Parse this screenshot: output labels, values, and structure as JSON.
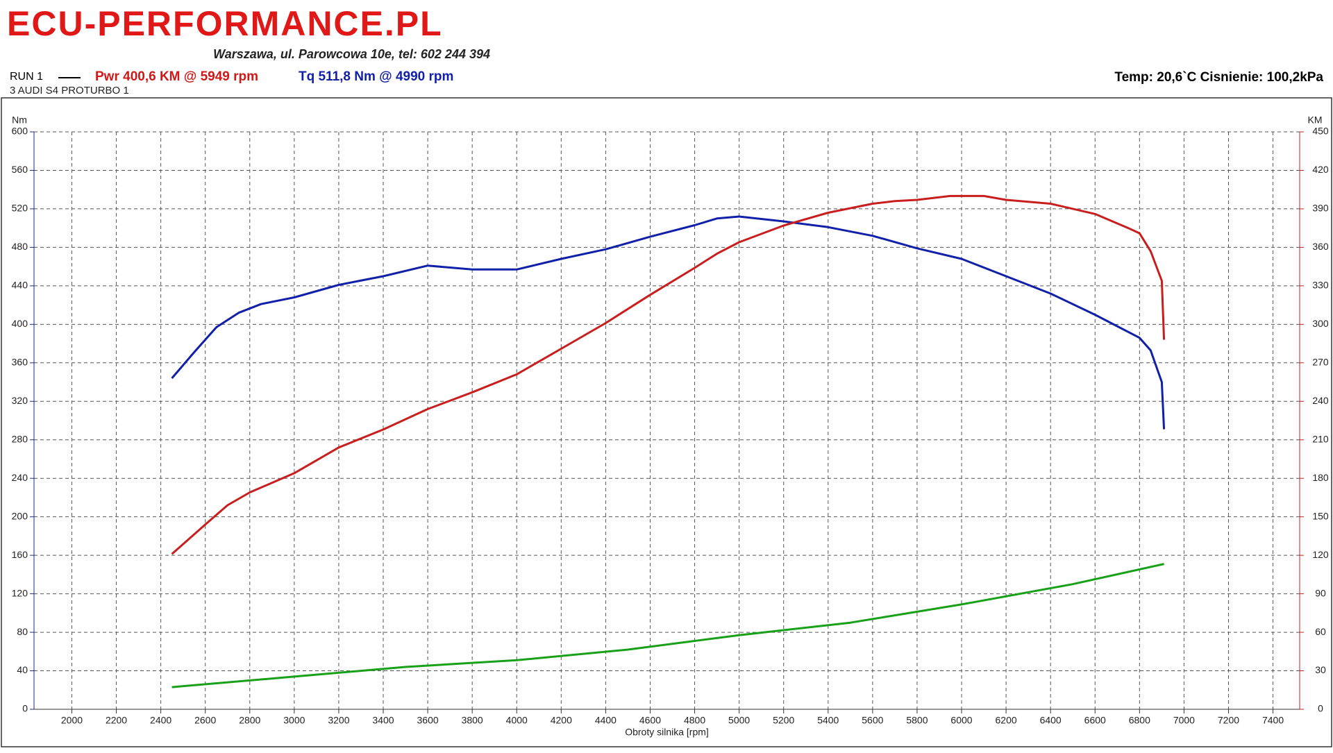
{
  "header": {
    "logo": "ECU-PERFORMANCE.PL",
    "address": "Warszawa, ul. Parowcowa 10e, tel: 602 244 394",
    "run": "RUN 1",
    "power_info": "Pwr  400,6 KM @ 5949 rpm",
    "torque_info": "Tq 511,8 Nm @ 4990 rpm",
    "vehicle": "3 AUDI S4 PROTURBO 1",
    "conditions": "Temp: 20,6`C   Cisnienie: 100,2kPa"
  },
  "chart_data": {
    "type": "line",
    "xlabel": "Obroty silnika [rpm]",
    "ylabel": "Nm",
    "y2label": "KM",
    "xlim": [
      1830,
      7520
    ],
    "xticks": [
      2000,
      2200,
      2400,
      2600,
      2800,
      3000,
      3200,
      3400,
      3600,
      3800,
      4000,
      4200,
      4400,
      4600,
      4800,
      5000,
      5200,
      5400,
      5600,
      5800,
      6000,
      6200,
      6400,
      6600,
      6800,
      7000,
      7200,
      7400
    ],
    "ylim": [
      0,
      600
    ],
    "yticks": [
      0,
      40,
      80,
      120,
      160,
      200,
      240,
      280,
      320,
      360,
      400,
      440,
      480,
      520,
      560,
      600
    ],
    "y2lim": [
      0,
      450
    ],
    "y2ticks": [
      0,
      30,
      60,
      90,
      120,
      150,
      180,
      210,
      240,
      270,
      300,
      330,
      360,
      390,
      420,
      450
    ],
    "grid": true,
    "ycolor": "#1a2a8a",
    "y2color": "#c81e1e",
    "series": [
      {
        "color": "#1020a8",
        "axis": "y",
        "x": [
          2450,
          2550,
          2650,
          2750,
          2850,
          3000,
          3200,
          3400,
          3600,
          3800,
          4000,
          4200,
          4400,
          4600,
          4800,
          4900,
          5000,
          5200,
          5400,
          5600,
          5800,
          6000,
          6200,
          6400,
          6600,
          6800,
          6850,
          6900,
          6910
        ],
        "values": [
          344,
          371,
          397,
          412,
          421,
          428,
          441,
          450,
          461,
          457,
          457,
          468,
          478,
          491,
          503,
          510,
          512,
          507,
          501,
          492,
          479,
          468,
          450,
          432,
          410,
          386,
          373,
          340,
          291
        ]
      },
      {
        "color": "#c81e1e",
        "axis": "y2",
        "x": [
          2450,
          2600,
          2700,
          2800,
          3000,
          3200,
          3400,
          3600,
          3800,
          4000,
          4200,
          4400,
          4600,
          4800,
          4900,
          5000,
          5200,
          5400,
          5600,
          5700,
          5800,
          5949,
          6100,
          6200,
          6400,
          6600,
          6750,
          6800,
          6850,
          6900,
          6910
        ],
        "values": [
          121,
          144,
          159,
          169,
          184,
          204,
          218,
          234,
          247,
          261,
          281,
          301,
          323,
          344,
          355,
          364,
          377,
          387,
          394,
          396,
          397,
          400,
          400,
          397,
          394,
          386,
          375,
          371,
          357,
          334,
          288
        ]
      },
      {
        "color": "#18a018",
        "axis": "y",
        "x": [
          2450,
          3000,
          3500,
          4000,
          4500,
          5000,
          5500,
          6000,
          6500,
          6910
        ],
        "values": [
          23,
          34,
          44,
          51,
          62,
          77,
          90,
          109,
          130,
          151
        ]
      }
    ]
  }
}
